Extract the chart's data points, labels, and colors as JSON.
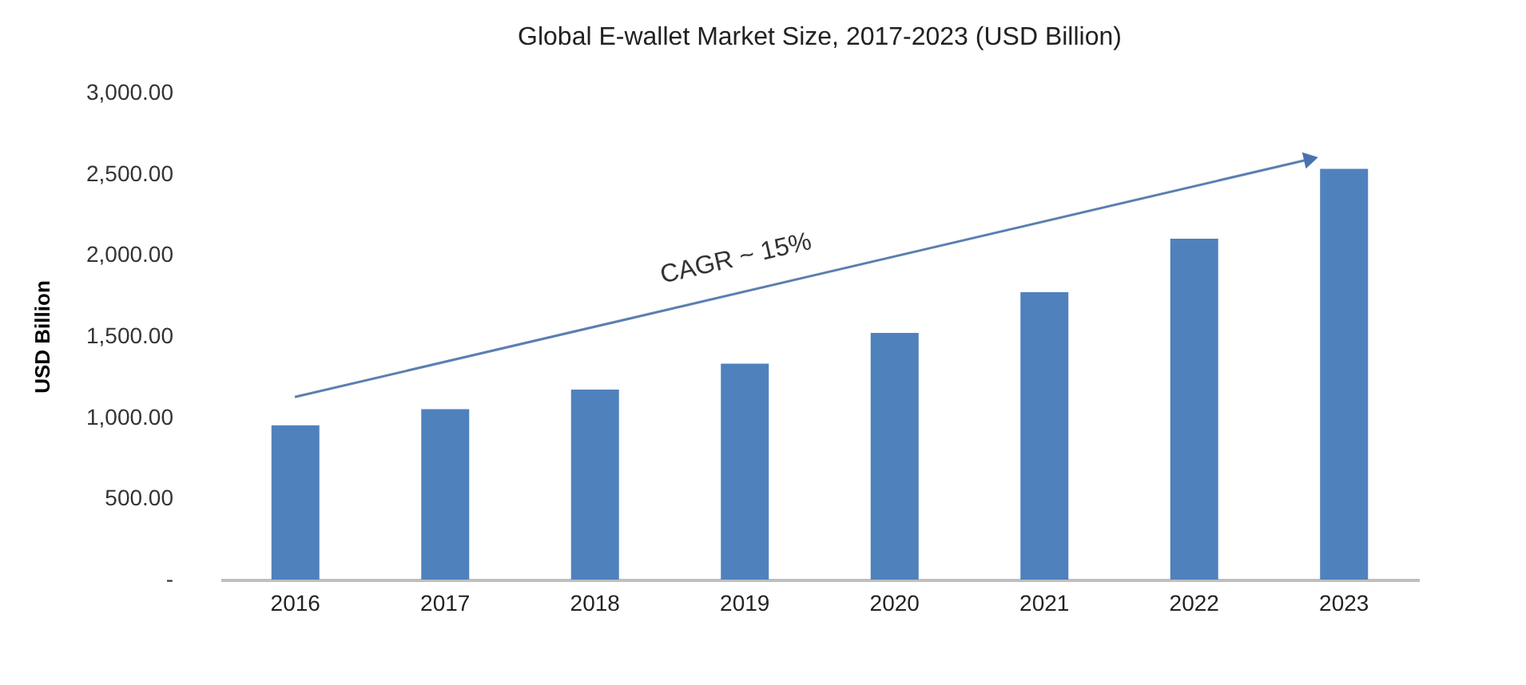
{
  "chart_data": {
    "type": "bar",
    "title": "Global E-wallet Market Size, 2017-2023 (USD Billion)",
    "ylabel": "USD Billion",
    "categories": [
      "2016",
      "2017",
      "2018",
      "2019",
      "2020",
      "2021",
      "2022",
      "2023"
    ],
    "values": [
      950,
      1050,
      1170,
      1330,
      1520,
      1770,
      2100,
      2530
    ],
    "color": "#4f81bd",
    "ylim": [
      0,
      3000
    ],
    "yticks": [
      {
        "value": 0,
        "label": "-"
      },
      {
        "value": 500,
        "label": "500.00"
      },
      {
        "value": 1000,
        "label": "1,000.00"
      },
      {
        "value": 1500,
        "label": "1,500.00"
      },
      {
        "value": 2000,
        "label": "2,000.00"
      },
      {
        "value": 2500,
        "label": "2,500.00"
      },
      {
        "value": 3000,
        "label": "3,000.00"
      }
    ],
    "annotations": [
      "CAGR ~ 15%"
    ],
    "grid": false
  }
}
